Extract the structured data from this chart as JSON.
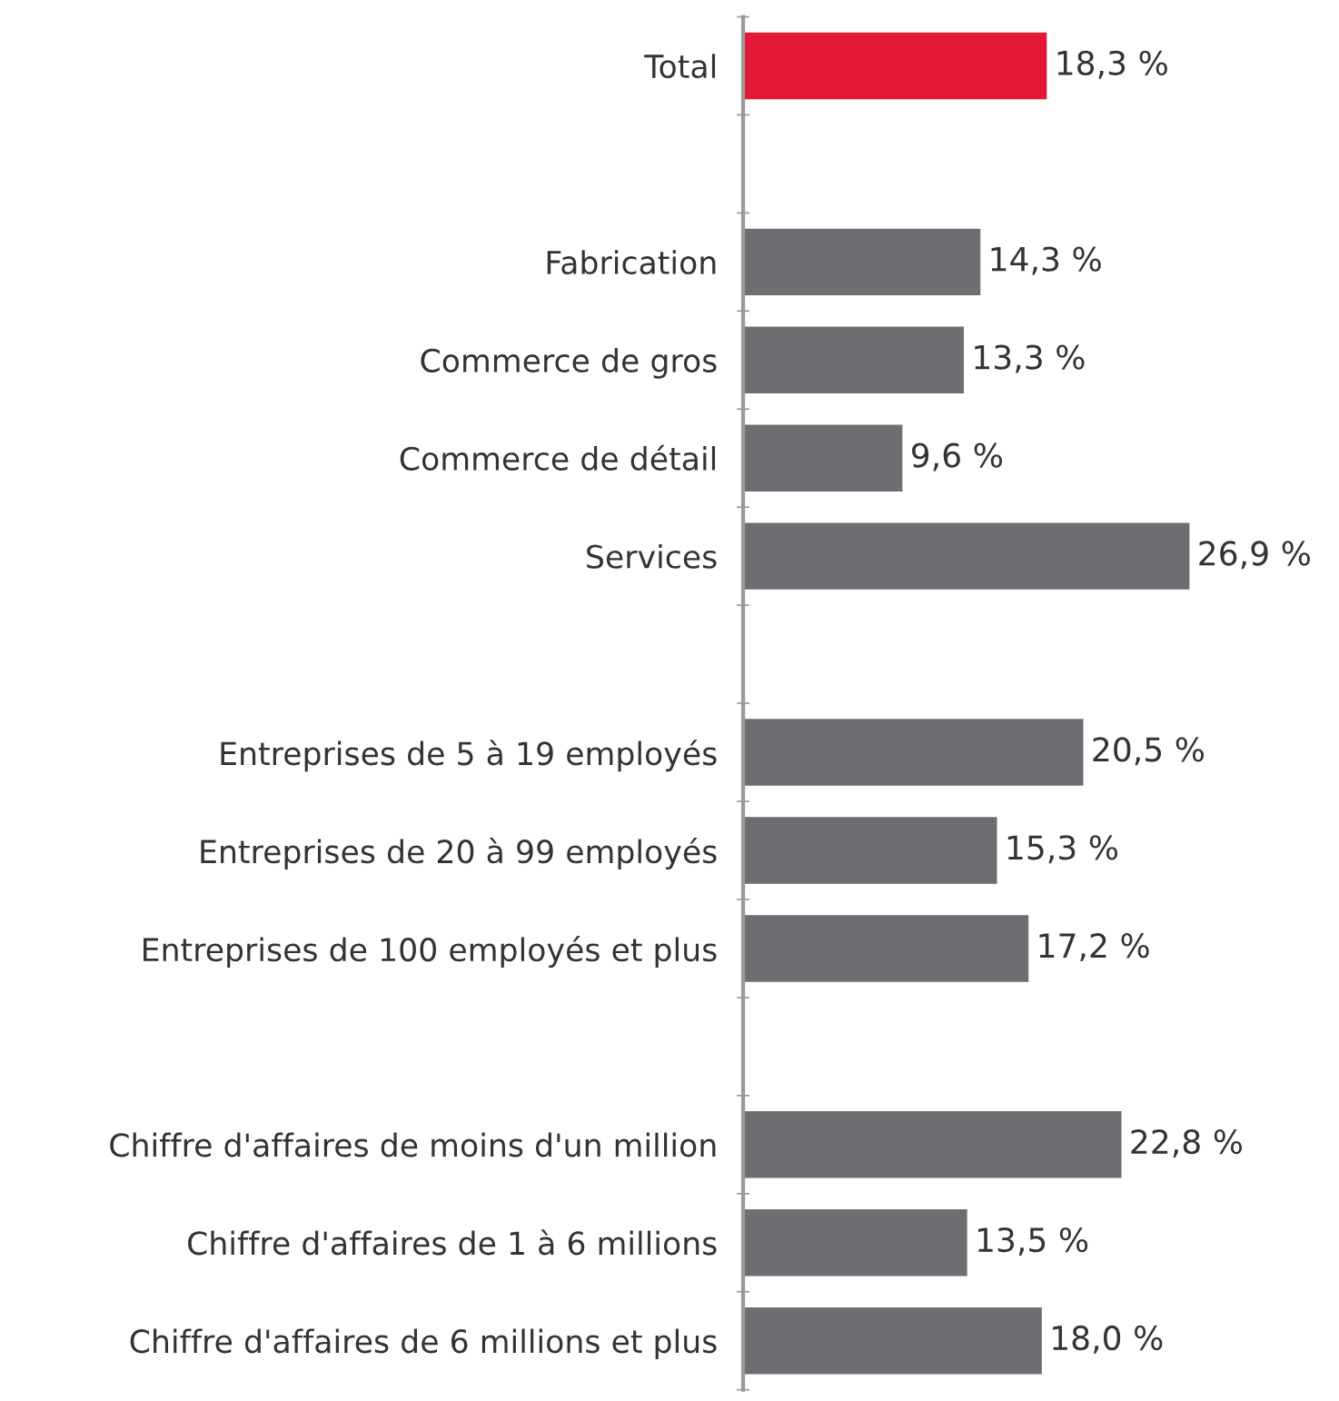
{
  "chart_data": {
    "type": "bar",
    "orientation": "horizontal",
    "categories": [
      "Total",
      null,
      "Fabrication",
      "Commerce de gros",
      "Commerce de détail",
      "Services",
      null,
      "Entreprises de 5 à 19 employés",
      "Entreprises de 20 à 99 employés",
      "Entreprises de 100 employés et plus",
      null,
      "Chiffre d'affaires de moins d'un million",
      "Chiffre d'affaires de 1 à 6 millions",
      "Chiffre d'affaires de 6 millions et plus"
    ],
    "values": [
      18.3,
      null,
      14.3,
      13.3,
      9.6,
      26.9,
      null,
      20.5,
      15.3,
      17.2,
      null,
      22.8,
      13.5,
      18.0
    ],
    "colors": [
      "#e31837",
      null,
      "#6d6e71",
      "#6d6e71",
      "#6d6e71",
      "#6d6e71",
      null,
      "#6d6e71",
      "#6d6e71",
      "#6d6e71",
      null,
      "#6d6e71",
      "#6d6e71",
      "#6d6e71"
    ],
    "value_labels": [
      "18,3 %",
      null,
      "14,3 %",
      "13,3 %",
      "9,6 %",
      "26,9 %",
      null,
      "20,5 %",
      "15,3 %",
      "17,2 %",
      null,
      "22,8 %",
      "13,5 %",
      "18,0 %"
    ],
    "tick_labels": "y",
    "grid": false,
    "legend": false
  }
}
